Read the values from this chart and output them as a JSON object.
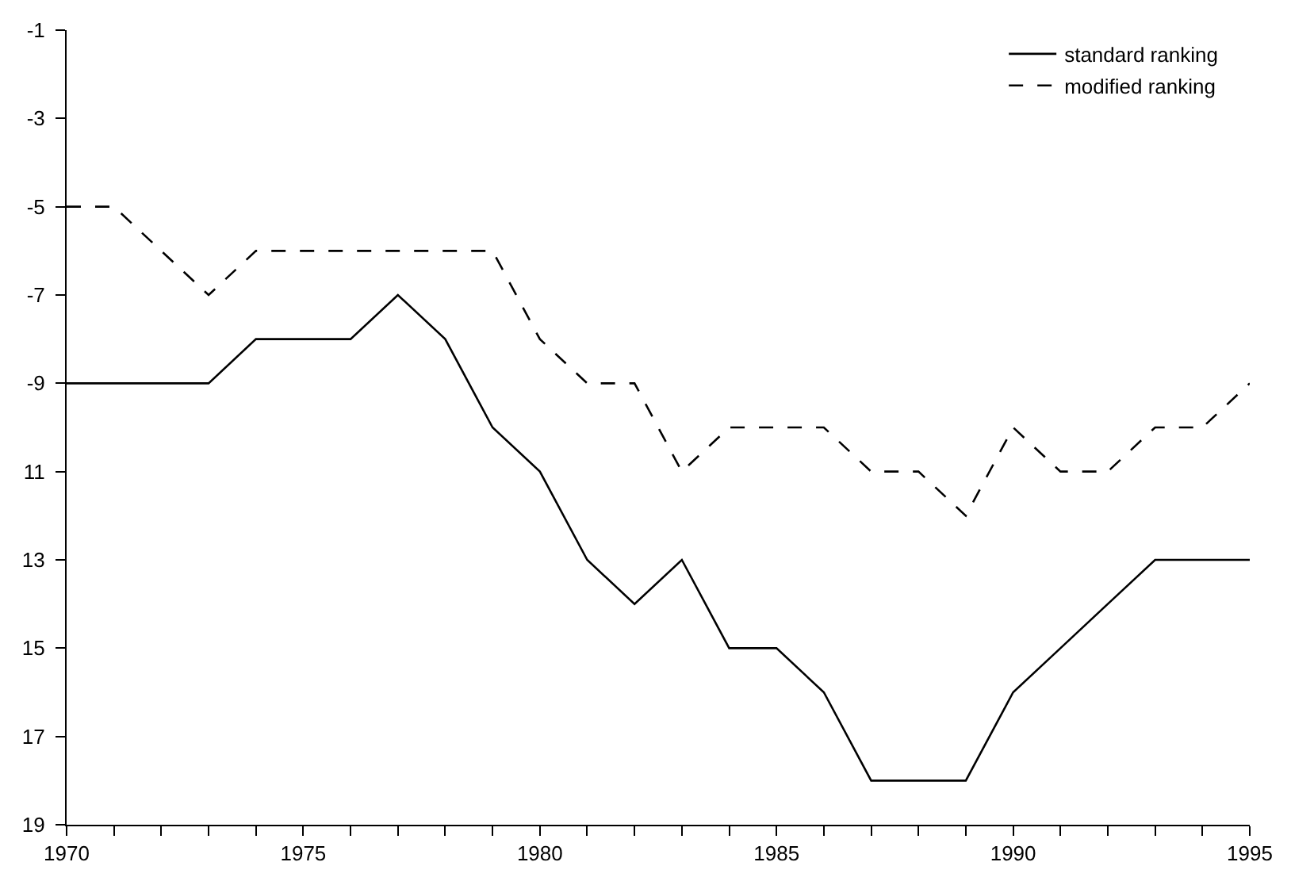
{
  "chart_data": {
    "type": "line",
    "x": [
      1970,
      1971,
      1972,
      1973,
      1974,
      1975,
      1976,
      1977,
      1978,
      1979,
      1980,
      1981,
      1982,
      1983,
      1984,
      1985,
      1986,
      1987,
      1988,
      1989,
      1990,
      1991,
      1992,
      1993,
      1994,
      1995
    ],
    "series": [
      {
        "name": "standard ranking",
        "color": "#000000",
        "line_style": "solid",
        "values": [
          -9,
          -9,
          -9,
          -9,
          -8,
          -8,
          -8,
          -7,
          -8,
          -10,
          -11,
          -13,
          -14,
          -13,
          -15,
          -15,
          -16,
          -18,
          -18,
          -18,
          -16,
          -15,
          -14,
          -13,
          -13,
          -13
        ]
      },
      {
        "name": "modified ranking",
        "color": "#000000",
        "line_style": "dashed",
        "values": [
          -5,
          -5,
          -6,
          -7,
          -6,
          -6,
          -6,
          -6,
          -6,
          -6,
          -8,
          -9,
          -9,
          -11,
          -10,
          -10,
          -10,
          -11,
          -11,
          -12,
          -10,
          -11,
          -11,
          -10,
          -10,
          -9
        ]
      }
    ],
    "xlim": [
      1970,
      1995
    ],
    "xticks": [
      1970,
      {
        "value": 1971,
        "label": null
      },
      {
        "value": 1972,
        "label": null
      },
      {
        "value": 1973,
        "label": null
      },
      {
        "value": 1974,
        "label": null
      },
      1975,
      {
        "value": 1976,
        "label": null
      },
      {
        "value": 1977,
        "label": null
      },
      {
        "value": 1978,
        "label": null
      },
      {
        "value": 1979,
        "label": null
      },
      1980,
      {
        "value": 1981,
        "label": null
      },
      {
        "value": 1982,
        "label": null
      },
      {
        "value": 1983,
        "label": null
      },
      {
        "value": 1984,
        "label": null
      },
      1985,
      {
        "value": 1986,
        "label": null
      },
      {
        "value": 1987,
        "label": null
      },
      {
        "value": 1988,
        "label": null
      },
      {
        "value": 1989,
        "label": null
      },
      1990,
      {
        "value": 1991,
        "label": null
      },
      {
        "value": 1992,
        "label": null
      },
      {
        "value": 1993,
        "label": null
      },
      {
        "value": 1994,
        "label": null
      },
      1995
    ],
    "ylim": [
      -19,
      -1
    ],
    "yticks": [
      -1,
      -3,
      -5,
      -7,
      -9,
      {
        "value": -11,
        "label": "11"
      },
      {
        "value": -13,
        "label": "13"
      },
      {
        "value": -15,
        "label": "15"
      },
      {
        "value": -17,
        "label": "17"
      },
      {
        "value": -19,
        "label": "19"
      }
    ],
    "legend": "top right",
    "marker": "none"
  }
}
